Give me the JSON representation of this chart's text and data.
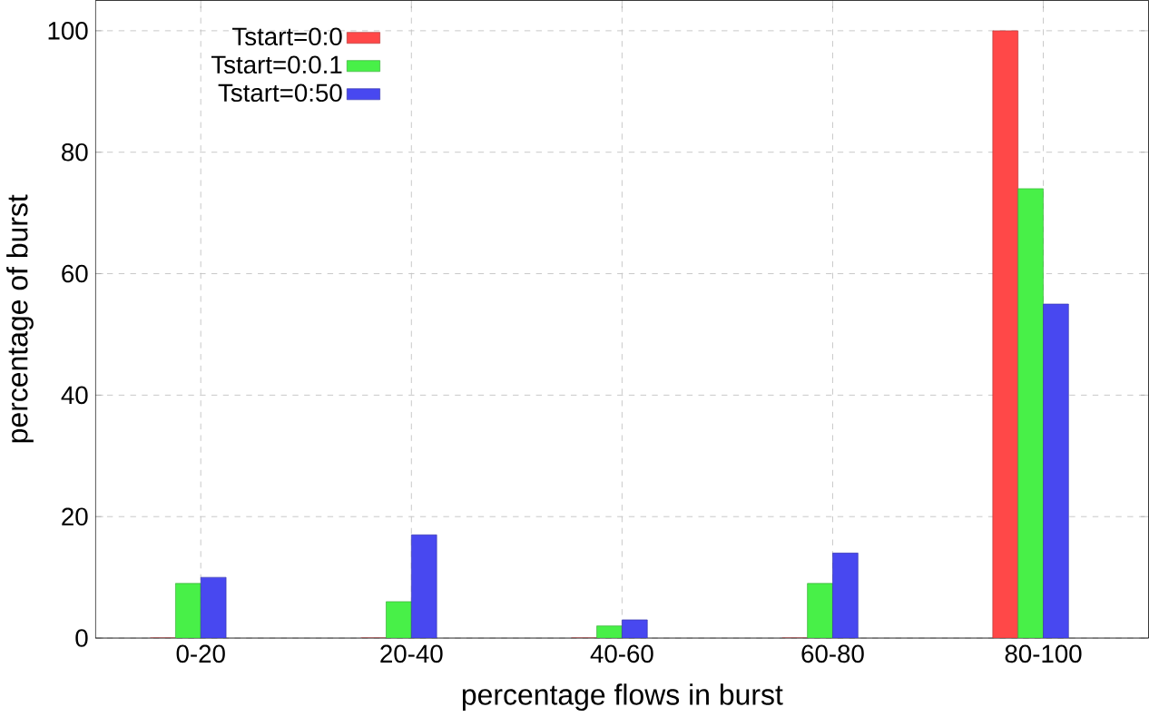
{
  "chart_data": {
    "type": "bar",
    "xlabel": "percentage flows in burst",
    "ylabel": "percentage of burst",
    "categories": [
      "0-20",
      "20-40",
      "40-60",
      "60-80",
      "80-100"
    ],
    "series": [
      {
        "name": "Tstart=0:0",
        "color": "#ff4848",
        "values": [
          0,
          0,
          0,
          0,
          100
        ]
      },
      {
        "name": "Tstart=0:0.1",
        "color": "#48f048",
        "values": [
          9,
          6,
          2,
          9,
          74
        ]
      },
      {
        "name": "Tstart=0:50",
        "color": "#4848f0",
        "values": [
          10,
          17,
          3,
          14,
          55
        ]
      }
    ],
    "ylim": [
      0,
      105
    ],
    "yticks": [
      0,
      20,
      40,
      60,
      80,
      100
    ],
    "grid": true,
    "legend": "top left"
  }
}
